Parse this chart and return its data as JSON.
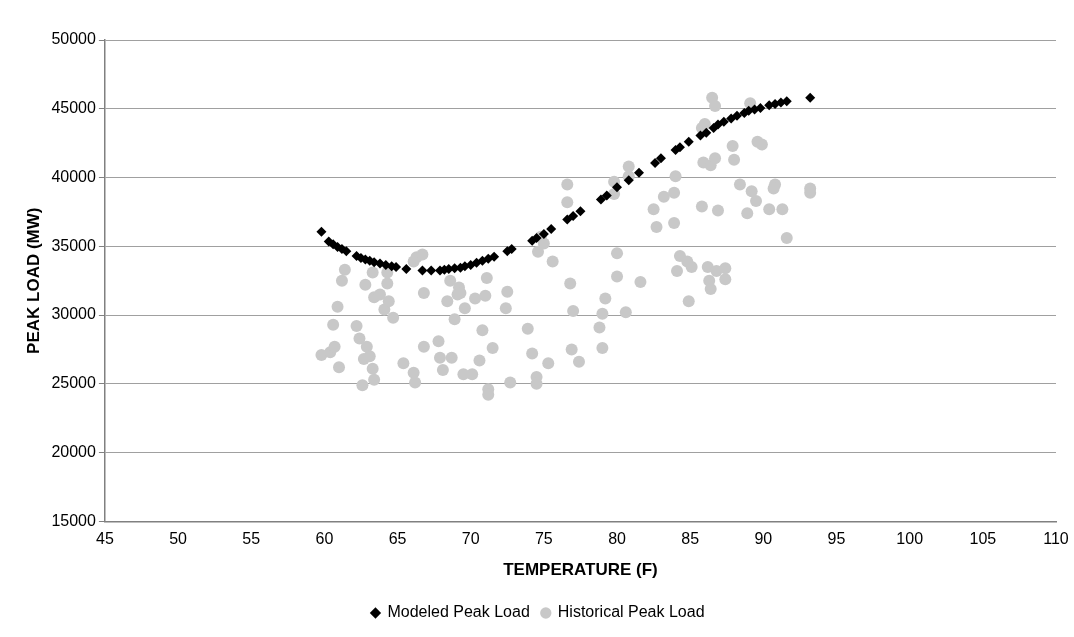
{
  "chart_data": {
    "type": "scatter",
    "xlabel": "TEMPERATURE (F)",
    "ylabel": "PEAK LOAD (MW)",
    "xlim": [
      45,
      110
    ],
    "xticks": [
      45,
      50,
      55,
      60,
      65,
      70,
      75,
      80,
      85,
      90,
      95,
      100,
      105,
      110
    ],
    "ylim": [
      15000,
      50000
    ],
    "yticks": [
      15000,
      20000,
      25000,
      30000,
      35000,
      40000,
      45000,
      50000
    ],
    "grid": "y",
    "legend": "bottom",
    "series": [
      {
        "name": "Modeled Peak Load",
        "color": "#000000",
        "marker": "diamond",
        "x": [
          59.8,
          60.3,
          60.6,
          60.9,
          61.2,
          61.5,
          62.2,
          62.5,
          62.8,
          63.1,
          63.4,
          63.8,
          64.2,
          64.6,
          64.9,
          65.6,
          66.7,
          67.3,
          67.9,
          68.2,
          68.5,
          68.9,
          69.3,
          69.6,
          70.0,
          70.4,
          70.8,
          71.2,
          71.6,
          72.5,
          72.8,
          74.2,
          74.5,
          75.0,
          75.5,
          76.6,
          77.0,
          77.5,
          78.9,
          79.3,
          80.0,
          80.8,
          81.5,
          82.6,
          83.0,
          84.0,
          84.3,
          84.9,
          85.7,
          86.1,
          86.6,
          86.9,
          87.3,
          87.8,
          88.2,
          88.7,
          89.0,
          89.4,
          89.8,
          90.4,
          90.8,
          91.2,
          91.6,
          93.2
        ],
        "values": [
          36050,
          35350,
          35150,
          34950,
          34800,
          34650,
          34300,
          34150,
          34050,
          33950,
          33850,
          33750,
          33650,
          33550,
          33500,
          33350,
          33250,
          33250,
          33250,
          33300,
          33350,
          33400,
          33450,
          33550,
          33650,
          33800,
          33950,
          34100,
          34250,
          34650,
          34800,
          35400,
          35600,
          35900,
          36250,
          36950,
          37200,
          37550,
          38400,
          38700,
          39300,
          39800,
          40350,
          41050,
          41400,
          42000,
          42200,
          42600,
          43050,
          43250,
          43600,
          43850,
          44050,
          44300,
          44500,
          44700,
          44850,
          44950,
          45050,
          45250,
          45350,
          45450,
          45550,
          45800
        ]
      },
      {
        "name": "Historical Peak Load",
        "color": "#c8c8c8",
        "marker": "circle",
        "x": [
          59.8,
          60.4,
          60.6,
          60.7,
          60.9,
          61.0,
          61.2,
          61.4,
          62.2,
          62.4,
          62.6,
          62.7,
          62.9,
          62.8,
          63.1,
          63.3,
          63.4,
          63.3,
          63.4,
          63.8,
          64.1,
          64.3,
          64.3,
          64.4,
          64.7,
          65.4,
          66.1,
          66.2,
          66.1,
          66.3,
          66.7,
          66.8,
          66.8,
          67.8,
          67.9,
          68.1,
          68.4,
          68.6,
          68.7,
          68.9,
          69.1,
          69.2,
          69.3,
          69.5,
          69.6,
          70.1,
          70.3,
          70.6,
          70.8,
          71.0,
          71.1,
          71.2,
          71.2,
          71.5,
          72.4,
          72.5,
          72.7,
          73.9,
          74.2,
          74.5,
          74.5,
          74.6,
          74.8,
          75.0,
          75.3,
          75.6,
          76.6,
          76.6,
          76.8,
          76.9,
          77.0,
          77.4,
          78.8,
          79.0,
          79.0,
          79.2,
          79.8,
          79.8,
          80.0,
          80.0,
          80.6,
          80.8,
          80.8,
          81.6,
          82.5,
          82.7,
          83.2,
          83.9,
          83.9,
          84.0,
          84.1,
          84.3,
          84.8,
          84.9,
          85.1,
          85.8,
          85.9,
          85.8,
          86.0,
          86.2,
          86.3,
          86.4,
          86.4,
          86.5,
          86.7,
          86.7,
          86.8,
          86.9,
          87.4,
          87.4,
          87.9,
          88.0,
          88.4,
          88.9,
          89.1,
          89.2,
          89.5,
          89.6,
          89.9,
          90.4,
          90.8,
          90.7,
          91.3,
          91.6,
          93.2,
          93.2
        ],
        "values": [
          27100,
          27300,
          29300,
          27700,
          30600,
          26200,
          32500,
          33300,
          29200,
          28300,
          24900,
          26800,
          27700,
          32200,
          27000,
          26100,
          25300,
          33100,
          31300,
          31500,
          30400,
          32300,
          33100,
          31000,
          29800,
          26500,
          25800,
          25100,
          33900,
          34200,
          34400,
          31600,
          27700,
          28100,
          26900,
          26000,
          31000,
          32500,
          26900,
          29700,
          31500,
          32000,
          31600,
          25700,
          30500,
          25700,
          31200,
          26700,
          28900,
          31400,
          32700,
          24600,
          24200,
          27600,
          30500,
          31700,
          25100,
          29000,
          27200,
          25500,
          25000,
          34600,
          35700,
          35200,
          26500,
          33900,
          39500,
          38200,
          32300,
          27500,
          30300,
          26600,
          29100,
          27600,
          30100,
          31200,
          38800,
          39700,
          34500,
          32800,
          30200,
          40100,
          40800,
          32400,
          37700,
          36400,
          38600,
          36700,
          38900,
          40100,
          33200,
          34300,
          33900,
          31000,
          33500,
          43600,
          41100,
          37900,
          43900,
          33500,
          32500,
          40900,
          31900,
          45800,
          45200,
          41400,
          33200,
          37600,
          33400,
          32600,
          42300,
          41300,
          39500,
          37400,
          45400,
          39000,
          38300,
          42600,
          42400,
          37700,
          39500,
          39200,
          37700,
          35600,
          39200,
          38900
        ]
      }
    ]
  }
}
